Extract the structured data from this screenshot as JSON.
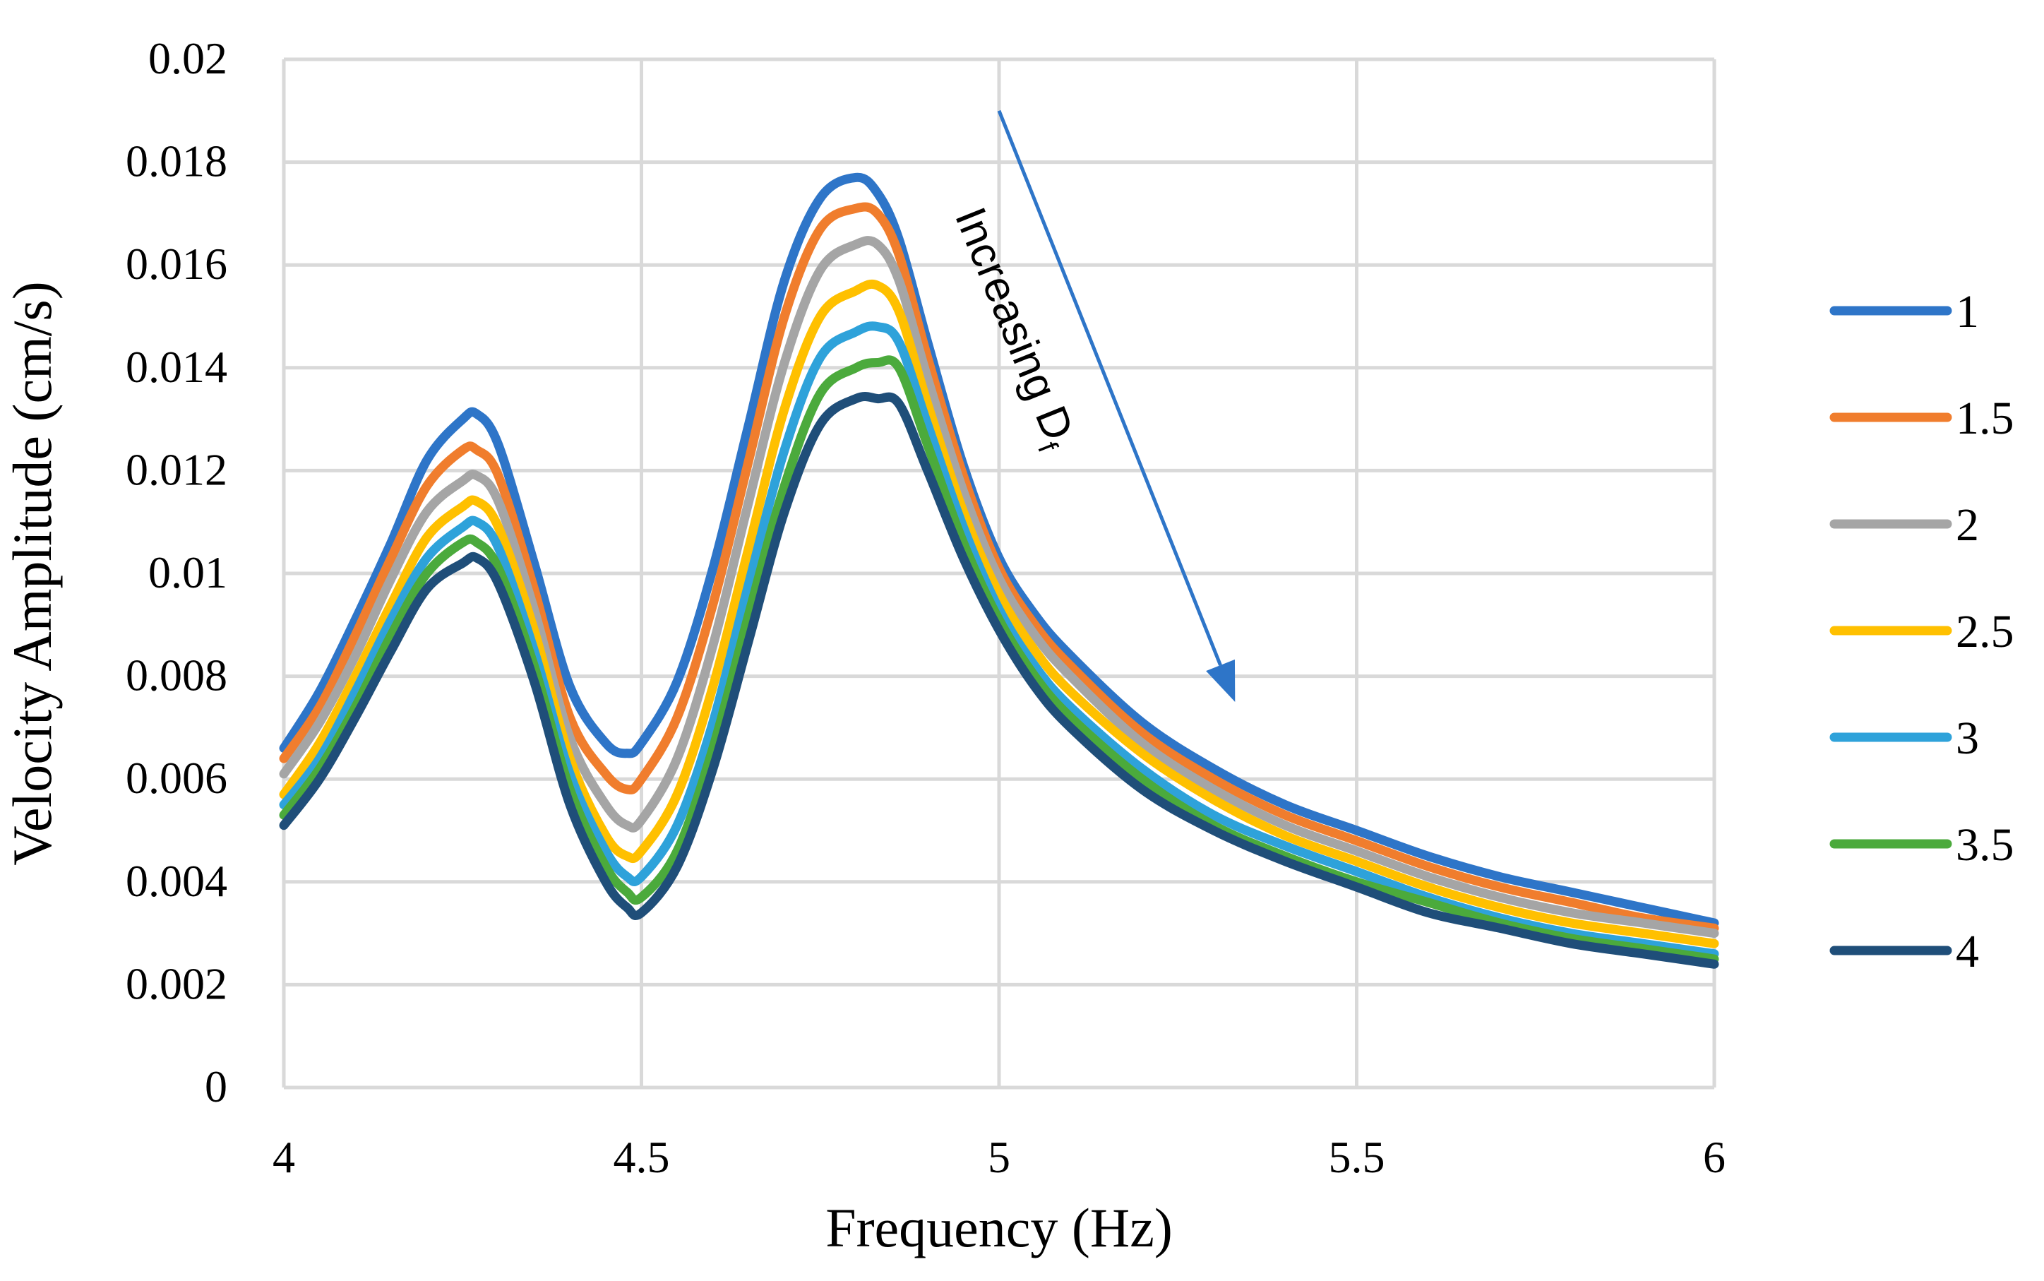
{
  "chart_data": {
    "type": "line",
    "title": "",
    "xlabel": "Frequency (Hz)",
    "ylabel": "Velocity Amplitude (cm/s)",
    "xlim": [
      4,
      6
    ],
    "ylim": [
      0,
      0.02
    ],
    "xticks": [
      4,
      4.5,
      5,
      5.5,
      6
    ],
    "xtick_labels": [
      "4",
      "4.5",
      "5",
      "5.5",
      "6"
    ],
    "yticks": [
      0,
      0.002,
      0.004,
      0.006,
      0.008,
      0.01,
      0.012,
      0.014,
      0.016,
      0.018,
      0.02
    ],
    "ytick_labels": [
      "0",
      "0.002",
      "0.004",
      "0.006",
      "0.008",
      "0.01",
      "0.012",
      "0.014",
      "0.016",
      "0.018",
      "0.02"
    ],
    "grid": true,
    "legend_position": "right",
    "annotation": {
      "text": "Increasing D",
      "subscript": "f",
      "arrow_start": [
        5.0,
        0.019
      ],
      "arrow_end": [
        5.33,
        0.0075
      ]
    },
    "x": [
      4.0,
      4.05,
      4.1,
      4.15,
      4.2,
      4.25,
      4.27,
      4.3,
      4.35,
      4.4,
      4.45,
      4.48,
      4.5,
      4.55,
      4.6,
      4.65,
      4.7,
      4.75,
      4.8,
      4.83,
      4.86,
      4.9,
      4.95,
      5.0,
      5.05,
      5.1,
      5.2,
      5.3,
      5.4,
      5.5,
      5.6,
      5.7,
      5.8,
      5.9,
      6.0
    ],
    "series": [
      {
        "name": "1",
        "color": "#2E75C8",
        "values": [
          0.0066,
          0.0077,
          0.0091,
          0.0106,
          0.0122,
          0.013,
          0.0131,
          0.0125,
          0.0102,
          0.0078,
          0.0067,
          0.0065,
          0.0067,
          0.0079,
          0.0101,
          0.0129,
          0.0157,
          0.0173,
          0.0177,
          0.0174,
          0.0165,
          0.0145,
          0.0121,
          0.0103,
          0.0092,
          0.0084,
          0.0071,
          0.0062,
          0.0055,
          0.005,
          0.0045,
          0.0041,
          0.0038,
          0.0035,
          0.0032
        ]
      },
      {
        "name": "1.5",
        "color": "#F07D2D",
        "values": [
          0.0064,
          0.0074,
          0.0088,
          0.0103,
          0.0117,
          0.0124,
          0.0124,
          0.0119,
          0.0097,
          0.0072,
          0.0061,
          0.0058,
          0.006,
          0.0072,
          0.0094,
          0.0122,
          0.015,
          0.0167,
          0.0171,
          0.017,
          0.0162,
          0.0142,
          0.0119,
          0.0101,
          0.009,
          0.0082,
          0.0069,
          0.006,
          0.0053,
          0.0048,
          0.0043,
          0.0039,
          0.0036,
          0.0033,
          0.0031
        ]
      },
      {
        "name": "2",
        "color": "#A5A5A5",
        "values": [
          0.0061,
          0.0071,
          0.0084,
          0.0099,
          0.0112,
          0.0118,
          0.0119,
          0.0114,
          0.0093,
          0.0068,
          0.0055,
          0.0051,
          0.0052,
          0.0064,
          0.0086,
          0.0114,
          0.0141,
          0.0159,
          0.0164,
          0.0164,
          0.0157,
          0.0138,
          0.0116,
          0.0099,
          0.0088,
          0.008,
          0.0067,
          0.0058,
          0.0051,
          0.0046,
          0.0041,
          0.0037,
          0.0034,
          0.0032,
          0.003
        ]
      },
      {
        "name": "2.5",
        "color": "#FFC000",
        "values": [
          0.0057,
          0.0067,
          0.008,
          0.0094,
          0.0107,
          0.0113,
          0.0114,
          0.0109,
          0.0089,
          0.0064,
          0.0049,
          0.0045,
          0.0046,
          0.0057,
          0.0078,
          0.0105,
          0.0132,
          0.015,
          0.0155,
          0.0156,
          0.0151,
          0.0133,
          0.0112,
          0.0096,
          0.0085,
          0.0077,
          0.0065,
          0.0056,
          0.0049,
          0.0044,
          0.0039,
          0.0035,
          0.0032,
          0.003,
          0.0028
        ]
      },
      {
        "name": "3",
        "color": "#2EA2DA",
        "values": [
          0.0055,
          0.0064,
          0.0077,
          0.0091,
          0.0103,
          0.0109,
          0.011,
          0.0105,
          0.0085,
          0.0061,
          0.0046,
          0.0041,
          0.0041,
          0.0051,
          0.0071,
          0.0098,
          0.0124,
          0.0142,
          0.0147,
          0.0148,
          0.0145,
          0.0129,
          0.0109,
          0.0093,
          0.0082,
          0.0074,
          0.0062,
          0.0053,
          0.0047,
          0.0042,
          0.0037,
          0.0033,
          0.003,
          0.0028,
          0.0026
        ]
      },
      {
        "name": "3.5",
        "color": "#4BAA3C",
        "values": [
          0.0053,
          0.0062,
          0.0074,
          0.0088,
          0.01,
          0.0106,
          0.0106,
          0.0101,
          0.0082,
          0.0058,
          0.0043,
          0.0038,
          0.0037,
          0.0046,
          0.0066,
          0.0092,
          0.0117,
          0.0135,
          0.014,
          0.0141,
          0.014,
          0.0125,
          0.0106,
          0.0091,
          0.008,
          0.0072,
          0.006,
          0.0051,
          0.0045,
          0.004,
          0.0036,
          0.0032,
          0.0029,
          0.0027,
          0.0025
        ]
      },
      {
        "name": "4",
        "color": "#1F4E79",
        "values": [
          0.0051,
          0.006,
          0.0072,
          0.0085,
          0.0097,
          0.0102,
          0.0103,
          0.0098,
          0.0079,
          0.0055,
          0.004,
          0.0035,
          0.0034,
          0.0043,
          0.0062,
          0.0087,
          0.0112,
          0.0129,
          0.0134,
          0.0134,
          0.0133,
          0.012,
          0.0103,
          0.0089,
          0.0078,
          0.007,
          0.0058,
          0.005,
          0.0044,
          0.0039,
          0.0034,
          0.0031,
          0.0028,
          0.0026,
          0.0024
        ]
      }
    ]
  }
}
